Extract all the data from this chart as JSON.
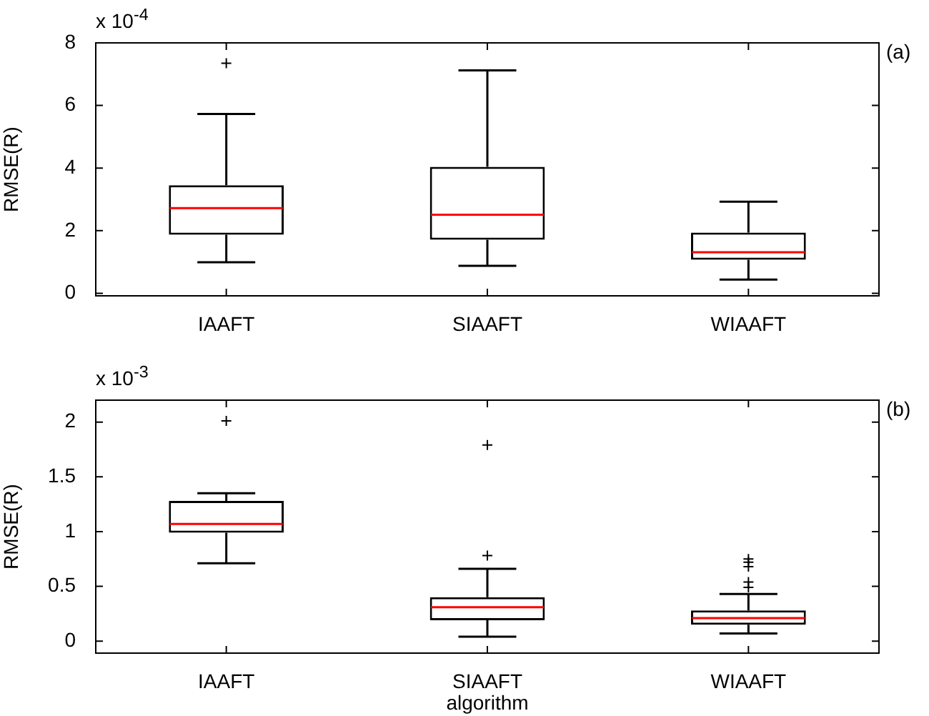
{
  "chart_data": [
    {
      "type": "box",
      "ylabel": "RMSE(R)",
      "categories": [
        "IAAFT",
        "SIAAFT",
        "WIAAFT"
      ],
      "ylim": [
        -0.08,
        8
      ],
      "yticks": [
        0,
        2,
        4,
        6,
        8
      ],
      "marker": "cross",
      "annotations": [
        "x 10$^{-4}$",
        "(a)"
      ],
      "series": [
        {
          "color": "#000000",
          "boxes": [
            {
              "low": 0.99,
              "q1": 1.87,
              "median": 2.72,
              "q3": 3.45,
              "high": 5.73,
              "outliers": [
                7.35
              ]
            },
            {
              "low": 0.88,
              "q1": 1.71,
              "median": 2.51,
              "q3": 4.04,
              "high": 7.12
            },
            {
              "low": 0.44,
              "q1": 1.07,
              "median": 1.31,
              "q3": 1.94,
              "high": 2.93
            }
          ]
        }
      ]
    },
    {
      "type": "box",
      "xlabel": "algorithm",
      "ylabel": "RMSE(R)",
      "categories": [
        "IAAFT",
        "SIAAFT",
        "WIAAFT"
      ],
      "ylim": [
        -0.11,
        2.2
      ],
      "yticks": [
        0,
        0.5,
        1,
        1.5,
        2
      ],
      "marker": "cross",
      "annotations": [
        "x 10$^{-3}$",
        "(b)"
      ],
      "series": [
        {
          "color": "#000000",
          "boxes": [
            {
              "low": 0.71,
              "q1": 0.99,
              "median": 1.07,
              "q3": 1.28,
              "high": 1.35,
              "outliers": [
                2.01
              ]
            },
            {
              "low": 0.04,
              "q1": 0.19,
              "median": 0.31,
              "q3": 0.4,
              "high": 0.66,
              "outliers": [
                0.78,
                1.79
              ]
            },
            {
              "low": 0.07,
              "q1": 0.15,
              "median": 0.21,
              "q3": 0.28,
              "high": 0.43,
              "outliers": [
                0.49,
                0.54,
                0.68,
                0.72,
                0.75
              ]
            }
          ]
        }
      ]
    }
  ]
}
